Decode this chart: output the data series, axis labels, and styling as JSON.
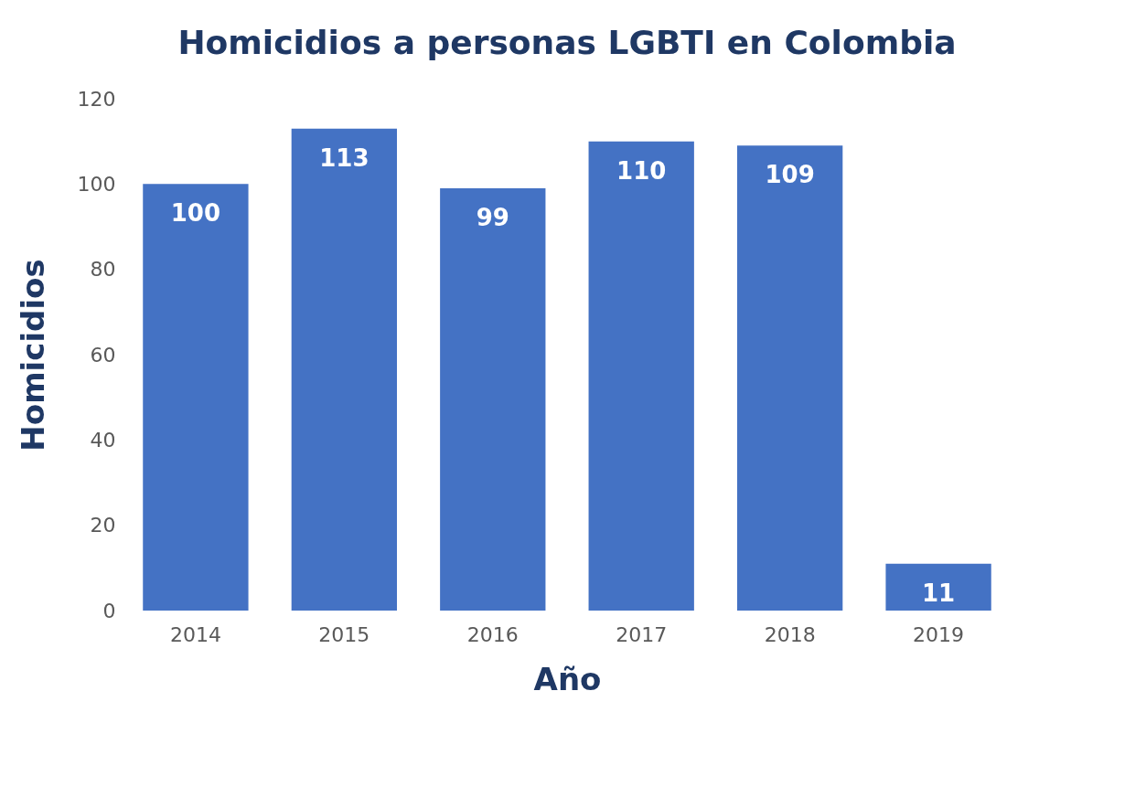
{
  "chart_data": {
    "type": "bar",
    "title": "Homicidios a personas LGBTI en Colombia",
    "xlabel": "Año",
    "ylabel": "Homicidios",
    "categories": [
      "2014",
      "2015",
      "2016",
      "2017",
      "2018",
      "2019"
    ],
    "values": [
      100,
      113,
      99,
      110,
      109,
      11
    ],
    "color": "#4472c4",
    "ylim": [
      0,
      120
    ],
    "yticks": [
      0,
      20,
      40,
      60,
      80,
      100,
      120
    ],
    "grid": false,
    "data_labels": true
  }
}
